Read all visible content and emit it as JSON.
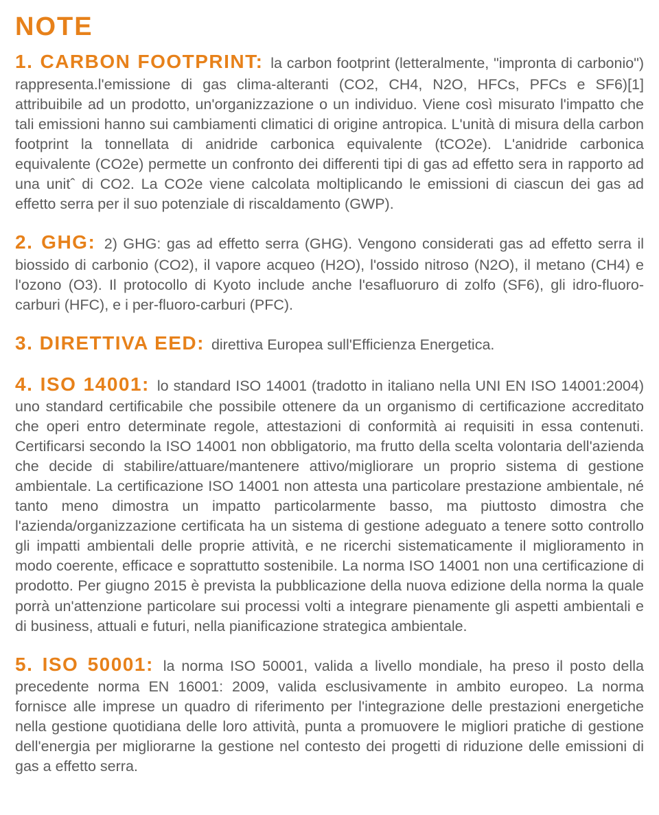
{
  "page": {
    "mainHeading": "NOTE",
    "accentColor": "#e7811a",
    "bodyColor": "#5a5a5a",
    "backgroundColor": "#ffffff"
  },
  "notes": [
    {
      "heading": "1. CARBON FOOTPRINT:",
      "body": "la carbon footprint (letteralmente, \"impronta di carbonio\") rappresenta.l'emissione di gas clima-alteranti (CO2, CH4, N2O, HFCs, PFCs e SF6)[1] attribuibile ad un prodotto, un'organizzazione o un individuo. Viene così misurato l'impatto che tali emissioni hanno sui cambiamenti climatici di origine antropica. L'unità di misura della carbon footprint la tonnellata di anidride carbonica equivalente (tCO2e). L'anidride carbonica equivalente (CO2e) permette un confronto dei differenti tipi di gas ad effetto sera in rapporto ad una unitˆ di CO2. La CO2e viene calcolata moltiplicando le emissioni di ciascun dei gas ad effetto serra per il suo potenziale di riscaldamento (GWP)."
    },
    {
      "heading": "2. GHG:",
      "body": "2) GHG: gas ad effetto serra (GHG). Vengono considerati gas ad effetto serra il biossido di carbonio (CO2), il vapore acqueo (H2O), l'ossido nitroso (N2O), il metano (CH4) e l'ozono (O3). Il protocollo di Kyoto include anche l'esafluoruro di zolfo (SF6), gli idro-fluoro-carburi (HFC), e i per-fluoro-carburi (PFC)."
    },
    {
      "heading": "3. DIRETTIVA EED:",
      "body": "direttiva Europea sull'Efficienza Energetica."
    },
    {
      "heading": "4. ISO 14001:",
      "body": "lo standard ISO 14001 (tradotto in italiano nella UNI EN ISO 14001:2004) uno standard certificabile che  possibile ottenere da un organismo di certificazione accreditato che operi entro determinate regole, attestazioni di conformità ai requisiti in essa contenuti. Certificarsi secondo la ISO 14001 non obbligatorio, ma frutto della scelta volontaria dell'azienda che decide di stabilire/attuare/mantenere attivo/migliorare un proprio sistema di gestione ambientale. La certificazione ISO 14001 non attesta una particolare prestazione ambientale, né tanto meno dimostra un impatto particolarmente basso, ma piuttosto dimostra che l'azienda/organizzazione certificata ha un sistema di gestione adeguato a tenere sotto controllo gli impatti ambientali delle proprie attività, e ne ricerchi sistematicamente il miglioramento in modo coerente, efficace e soprattutto sostenibile. La norma ISO 14001 non una certificazione di prodotto. Per giugno 2015 è prevista la pubblicazione della nuova edizione della norma la quale porrà un'attenzione particolare sui processi volti a integrare pienamente gli aspetti ambientali e di business, attuali e futuri, nella pianificazione strategica ambientale."
    },
    {
      "heading": "5. ISO 50001:",
      "body": "la norma ISO 50001, valida a livello mondiale, ha preso il posto della precedente norma EN 16001: 2009, valida esclusivamente in ambito europeo.\nLa norma fornisce alle imprese un quadro di riferimento per l'integrazione delle prestazioni energetiche nella gestione quotidiana delle loro attività, punta a promuovere le migliori pratiche di gestione dell'energia per migliorarne la gestione nel contesto dei progetti di riduzione delle emissioni di gas a effetto serra."
    }
  ]
}
